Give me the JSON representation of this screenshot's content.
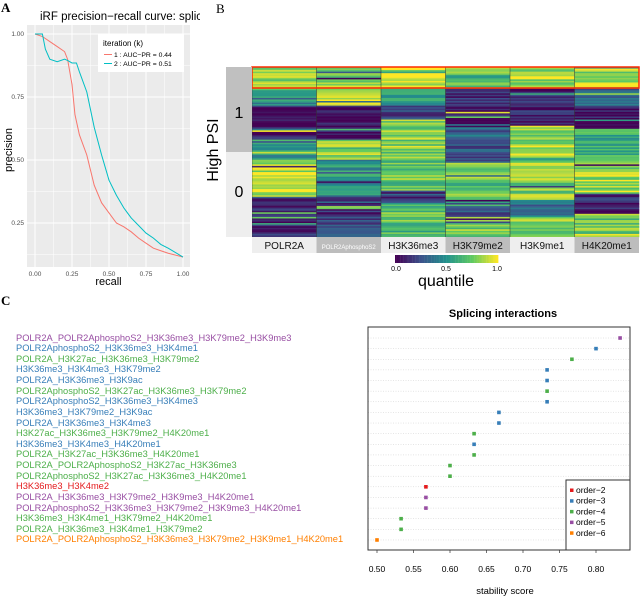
{
  "panels": {
    "a": "A",
    "b": "B",
    "c": "C"
  },
  "chart_data": [
    {
      "type": "line",
      "title": "iRF precision−recall curve: splicing",
      "xlabel": "recall",
      "ylabel": "precision",
      "xlim": [
        0,
        1
      ],
      "ylim": [
        0.1,
        1.02
      ],
      "xticks": [
        "0.00",
        "0.25",
        "0.50",
        "0.75",
        "1.00"
      ],
      "yticks": [
        "0.25",
        "0.50",
        "0.75",
        "1.00"
      ],
      "grid": true,
      "legend": {
        "title": "iteration (k)",
        "placement": "top-right"
      },
      "series": [
        {
          "name": "1 : AUC−PR =  0.44",
          "color": "#F8766D",
          "x": [
            0,
            0.05,
            0.1,
            0.15,
            0.2,
            0.22,
            0.25,
            0.27,
            0.3,
            0.35,
            0.4,
            0.45,
            0.5,
            0.55,
            0.6,
            0.65,
            0.7,
            0.75,
            0.8,
            0.85,
            0.9,
            1.0
          ],
          "y": [
            1,
            0.99,
            0.97,
            0.95,
            0.93,
            0.9,
            0.8,
            0.68,
            0.6,
            0.52,
            0.4,
            0.33,
            0.29,
            0.25,
            0.235,
            0.215,
            0.19,
            0.17,
            0.15,
            0.14,
            0.13,
            0.115
          ]
        },
        {
          "name": "2 : AUC−PR =  0.51",
          "color": "#00BFC4",
          "x": [
            0,
            0.05,
            0.07,
            0.1,
            0.15,
            0.2,
            0.22,
            0.25,
            0.28,
            0.3,
            0.35,
            0.4,
            0.45,
            0.5,
            0.55,
            0.6,
            0.65,
            0.7,
            0.75,
            0.8,
            0.85,
            0.9,
            1.0
          ],
          "y": [
            1,
            1,
            0.94,
            0.9,
            0.89,
            0.9,
            0.895,
            0.885,
            0.885,
            0.85,
            0.77,
            0.63,
            0.52,
            0.42,
            0.36,
            0.31,
            0.27,
            0.24,
            0.21,
            0.19,
            0.165,
            0.15,
            0.115
          ]
        }
      ]
    },
    {
      "type": "heatmap",
      "ylabel": "High PSI",
      "row_groups": [
        "1",
        "0"
      ],
      "columns": [
        "POLR2A",
        "POLR2AphosphoS2",
        "H3K36me3",
        "H3K79me2",
        "H3K9me1",
        "H4K20me1"
      ],
      "colorbar": {
        "label": "quantile",
        "ticks": [
          "0.0",
          "0.5",
          "1.0"
        ],
        "range": [
          0,
          1
        ],
        "colormap": "viridis"
      },
      "highlight_color": "#ff2a00"
    },
    {
      "type": "scatter",
      "title": "Splicing interactions",
      "xlabel": "stability score",
      "xlim": [
        0.49,
        0.85
      ],
      "xticks": [
        "0.50",
        "0.55",
        "0.60",
        "0.65",
        "0.70",
        "0.75",
        "0.80"
      ],
      "legend": {
        "placement": "bottom-right",
        "entries": [
          {
            "label": "order−2",
            "color": "#e41a1c"
          },
          {
            "label": "order−3",
            "color": "#377eb8"
          },
          {
            "label": "order−4",
            "color": "#4daf4a"
          },
          {
            "label": "order−5",
            "color": "#984ea3"
          },
          {
            "label": "order−6",
            "color": "#ff7f00"
          }
        ]
      },
      "points": [
        {
          "label": "POLR2A_POLR2AphosphoS2_H3K36me3_H3K79me2_H3K9me3",
          "order": 5,
          "value": 0.833
        },
        {
          "label": "POLR2AphosphoS2_H3K36me3_H3K4me1",
          "order": 3,
          "value": 0.8
        },
        {
          "label": "POLR2A_H3K27ac_H3K36me3_H3K79me2",
          "order": 4,
          "value": 0.767
        },
        {
          "label": "H3K36me3_H3K4me3_H3K79me2",
          "order": 3,
          "value": 0.733
        },
        {
          "label": "POLR2A_H3K36me3_H3K9ac",
          "order": 3,
          "value": 0.733
        },
        {
          "label": "POLR2AphosphoS2_H3K27ac_H3K36me3_H3K79me2",
          "order": 4,
          "value": 0.733
        },
        {
          "label": "POLR2AphosphoS2_H3K36me3_H3K4me3",
          "order": 3,
          "value": 0.733
        },
        {
          "label": "H3K36me3_H3K79me2_H3K9ac",
          "order": 3,
          "value": 0.667
        },
        {
          "label": "POLR2A_H3K36me3_H3K4me3",
          "order": 3,
          "value": 0.667
        },
        {
          "label": "H3K27ac_H3K36me3_H3K79me2_H4K20me1",
          "order": 4,
          "value": 0.633
        },
        {
          "label": "H3K36me3_H3K4me3_H4K20me1",
          "order": 3,
          "value": 0.633
        },
        {
          "label": "POLR2A_H3K27ac_H3K36me3_H4K20me1",
          "order": 4,
          "value": 0.633
        },
        {
          "label": "POLR2A_POLR2AphosphoS2_H3K27ac_H3K36me3",
          "order": 4,
          "value": 0.6
        },
        {
          "label": "POLR2AphosphoS2_H3K27ac_H3K36me3_H4K20me1",
          "order": 4,
          "value": 0.6
        },
        {
          "label": "H3K36me3_H3K4me2",
          "order": 2,
          "value": 0.567
        },
        {
          "label": "POLR2A_H3K36me3_H3K79me2_H3K9me3_H4K20me1",
          "order": 5,
          "value": 0.567
        },
        {
          "label": "POLR2AphosphoS2_H3K36me3_H3K79me2_H3K9me3_H4K20me1",
          "order": 5,
          "value": 0.567
        },
        {
          "label": "H3K36me3_H3K4me1_H3K79me2_H4K20me1",
          "order": 4,
          "value": 0.533
        },
        {
          "label": "POLR2A_H3K36me3_H3K4me1_H3K79me2",
          "order": 4,
          "value": 0.533
        },
        {
          "label": "POLR2A_POLR2AphosphoS2_H3K36me3_H3K79me2_H3K9me1_H4K20me1",
          "order": 6,
          "value": 0.5
        }
      ]
    }
  ]
}
